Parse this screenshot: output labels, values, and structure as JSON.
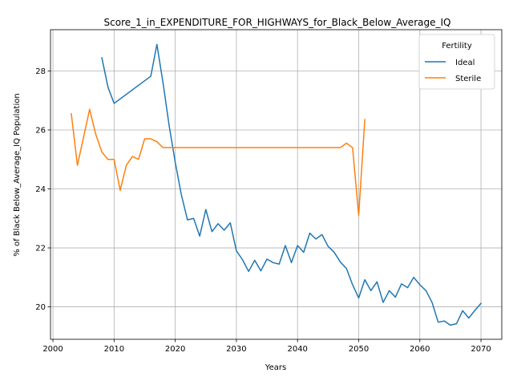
{
  "chart_data": {
    "type": "line",
    "title": "Score_1_in_EXPENDITURE_FOR_HIGHWAYS_for_Black_Below_Average_IQ",
    "xlabel": "Years",
    "ylabel": "% of Black Below_Average_IQ Population",
    "xlim": [
      1999.6,
      2073.4
    ],
    "ylim": [
      18.9,
      29.4
    ],
    "xticks": [
      2000,
      2010,
      2020,
      2030,
      2040,
      2050,
      2060,
      2070
    ],
    "yticks": [
      20,
      22,
      24,
      26,
      28
    ],
    "grid": true,
    "legend": {
      "title": "Fertility",
      "placement": "top-right"
    },
    "series": [
      {
        "name": "Ideal",
        "color": "#1f77b4",
        "x": [
          2008,
          2009,
          2010,
          2016,
          2017,
          2018,
          2019,
          2020,
          2021,
          2022,
          2023,
          2024,
          2025,
          2026,
          2027,
          2028,
          2029,
          2030,
          2031,
          2032,
          2033,
          2034,
          2035,
          2036,
          2037,
          2038,
          2039,
          2040,
          2041,
          2042,
          2043,
          2044,
          2045,
          2046,
          2047,
          2048,
          2049,
          2050,
          2051,
          2052,
          2053,
          2054,
          2055,
          2056,
          2057,
          2058,
          2059,
          2060,
          2061,
          2062,
          2063,
          2064,
          2065,
          2066,
          2067,
          2068,
          2069,
          2070
        ],
        "y": [
          28.45,
          27.45,
          26.9,
          27.82,
          28.9,
          27.6,
          26.15,
          24.9,
          23.8,
          22.95,
          23.0,
          22.4,
          23.3,
          22.55,
          22.82,
          22.6,
          22.85,
          21.9,
          21.6,
          21.2,
          21.58,
          21.22,
          21.62,
          21.5,
          21.45,
          22.08,
          21.5,
          22.08,
          21.85,
          22.5,
          22.3,
          22.45,
          22.05,
          21.85,
          21.52,
          21.3,
          20.75,
          20.3,
          20.92,
          20.55,
          20.85,
          20.15,
          20.55,
          20.33,
          20.78,
          20.65,
          21.0,
          20.75,
          20.55,
          20.15,
          19.48,
          19.52,
          19.38,
          19.43,
          19.87,
          19.62,
          19.88,
          20.12
        ]
      },
      {
        "name": "Sterile",
        "color": "#ff7f0e",
        "x": [
          2003,
          2004,
          2005,
          2006,
          2007,
          2008,
          2009,
          2010,
          2011,
          2012,
          2013,
          2014,
          2015,
          2016,
          2017,
          2018,
          2019,
          2020,
          2025,
          2030,
          2035,
          2040,
          2045,
          2047,
          2048,
          2049,
          2050,
          2051
        ],
        "y": [
          26.55,
          24.8,
          25.75,
          26.7,
          25.85,
          25.25,
          25.0,
          25.0,
          23.95,
          24.8,
          25.1,
          25.0,
          25.7,
          25.7,
          25.6,
          25.4,
          25.4,
          25.4,
          25.4,
          25.4,
          25.4,
          25.4,
          25.4,
          25.4,
          25.55,
          25.4,
          23.1,
          26.35
        ]
      }
    ]
  }
}
